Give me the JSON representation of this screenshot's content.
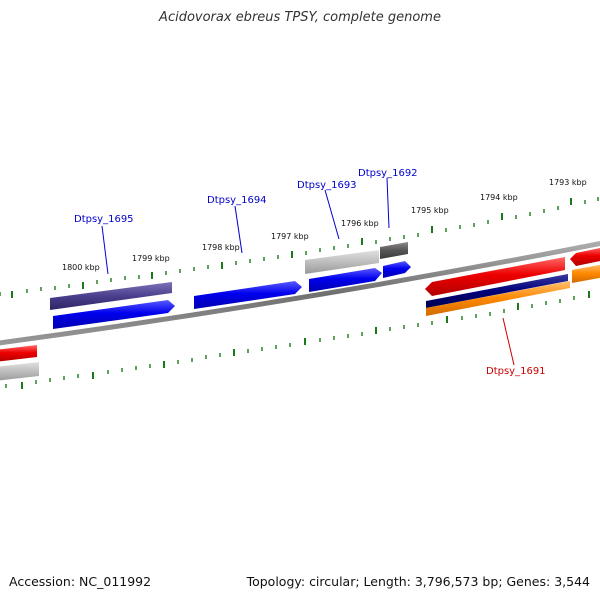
{
  "title": "Acidovorax ebreus TPSY, complete genome",
  "footer": {
    "accession_label": "Accession:",
    "accession": "NC_011992",
    "topology_label": "Topology:",
    "topology": "circular",
    "length_label": "Length:",
    "length": "3,796,573 bp",
    "genes_label": "Genes:",
    "genes": "3,544"
  },
  "colors": {
    "backbone": "#808080",
    "tick": "#1a7a1a",
    "label_forward": "#0000cc",
    "label_reverse": "#cc0000",
    "blue": "#0000ee",
    "navy": "#00007a",
    "slate": "#4a3f8c",
    "gray_light": "#bdbdbd",
    "gray_dark": "#666666",
    "red": "#ee0000",
    "orange": "#ff8800"
  },
  "scale": {
    "unit": "kbp",
    "labels": [
      "1800 kbp",
      "1799 kbp",
      "1798 kbp",
      "1797 kbp",
      "1796 kbp",
      "1795 kbp",
      "1794 kbp",
      "1793 kbp"
    ]
  },
  "gene_labels": {
    "forward": [
      "Dtpsy_1695",
      "Dtpsy_1694",
      "Dtpsy_1693",
      "Dtpsy_1692"
    ],
    "reverse": [
      "Dtpsy_1691"
    ]
  }
}
